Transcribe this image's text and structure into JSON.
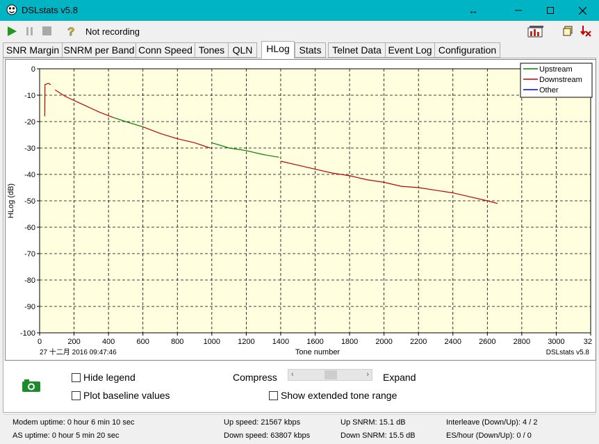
{
  "window": {
    "title": "DSLstats v5.8",
    "colors": {
      "titlebar": "#00b4c4",
      "plot_bg": "#ffffe0"
    }
  },
  "toolbar": {
    "status": "Not recording",
    "icons": [
      "play-icon",
      "pause-icon",
      "stop-icon",
      "help-icon",
      "graphs-icon",
      "restore-icon",
      "exit-icon"
    ]
  },
  "tabs": [
    {
      "label": "SNR Margin"
    },
    {
      "label": "SNRM per Band"
    },
    {
      "label": "Conn Speed"
    },
    {
      "label": "Tones"
    },
    {
      "label": "QLN"
    },
    {
      "label": "HLog",
      "active": true
    },
    {
      "label": "Stats"
    },
    {
      "label": "Telnet Data"
    },
    {
      "label": "Event Log"
    },
    {
      "label": "Configuration"
    }
  ],
  "chart": {
    "date_label": "27 十二月 2016 09:47:46",
    "brand_label": "DSLstats v5.8"
  },
  "chart_data": {
    "type": "line",
    "xlabel": "Tone number",
    "ylabel": "HLog (dB)",
    "xlim": [
      0,
      3200
    ],
    "ylim": [
      -100,
      0
    ],
    "x_ticks": [
      "0",
      "200",
      "400",
      "600",
      "800",
      "1000",
      "1200",
      "1400",
      "1600",
      "1800",
      "2000",
      "2200",
      "2400",
      "2600",
      "2800",
      "3000",
      "32"
    ],
    "y_ticks": [
      "0",
      "-10",
      "-20",
      "-30",
      "-40",
      "-50",
      "-60",
      "-70",
      "-80",
      "-90",
      "-100"
    ],
    "grid": true,
    "legend_position": "top-right",
    "legend": [
      {
        "name": "Upstream",
        "color": "#008000"
      },
      {
        "name": "Downstream",
        "color": "#c00000"
      },
      {
        "name": "Other",
        "color": "#0000c0"
      }
    ],
    "series": [
      {
        "name": "Downstream",
        "color": "#c00000",
        "points": [
          [
            30,
            -18
          ],
          [
            31,
            -6
          ],
          [
            50,
            -5.5
          ],
          [
            65,
            -6
          ]
        ]
      },
      {
        "name": "Downstream",
        "color": "#c00000",
        "points": [
          [
            90,
            -8
          ],
          [
            150,
            -10.5
          ],
          [
            250,
            -13.5
          ],
          [
            350,
            -16.5
          ],
          [
            430,
            -18.5
          ]
        ]
      },
      {
        "name": "Upstream",
        "color": "#008000",
        "points": [
          [
            430,
            -18.5
          ],
          [
            500,
            -20
          ],
          [
            600,
            -22
          ]
        ]
      },
      {
        "name": "Downstream",
        "color": "#c00000",
        "points": [
          [
            600,
            -22
          ],
          [
            700,
            -24.5
          ],
          [
            800,
            -26.5
          ],
          [
            900,
            -28
          ],
          [
            990,
            -30
          ]
        ]
      },
      {
        "name": "Upstream",
        "color": "#008000",
        "points": [
          [
            1000,
            -28
          ],
          [
            1100,
            -30
          ],
          [
            1200,
            -31
          ],
          [
            1300,
            -32.5
          ],
          [
            1390,
            -33.5
          ]
        ]
      },
      {
        "name": "Downstream",
        "color": "#c00000",
        "points": [
          [
            1400,
            -35
          ],
          [
            1500,
            -36.5
          ],
          [
            1600,
            -38
          ],
          [
            1700,
            -39.5
          ],
          [
            1800,
            -40.5
          ],
          [
            1900,
            -42
          ],
          [
            2000,
            -43
          ],
          [
            2100,
            -44.5
          ],
          [
            2200,
            -45
          ],
          [
            2300,
            -46
          ],
          [
            2400,
            -47
          ],
          [
            2500,
            -48.5
          ],
          [
            2600,
            -50
          ],
          [
            2660,
            -51
          ]
        ]
      }
    ]
  },
  "options": {
    "hide_legend": "Hide legend",
    "plot_baseline": "Plot baseline values",
    "compress": "Compress",
    "expand": "Expand",
    "show_extended": "Show extended tone range"
  },
  "statusbar": {
    "modem_uptime": "Modem uptime:  0 hour 6 min 10 sec",
    "as_uptime": "AS uptime:  0 hour 5 min 20 sec",
    "up_speed": "Up speed: 21567 kbps",
    "down_speed": "Down speed: 63807 kbps",
    "up_snrm": "Up SNRM: 15.1 dB",
    "down_snrm": "Down SNRM: 15.5 dB",
    "interleave": "Interleave (Down/Up): 4 / 2",
    "es_hour": "ES/hour (Down/Up): 0 / 0"
  }
}
